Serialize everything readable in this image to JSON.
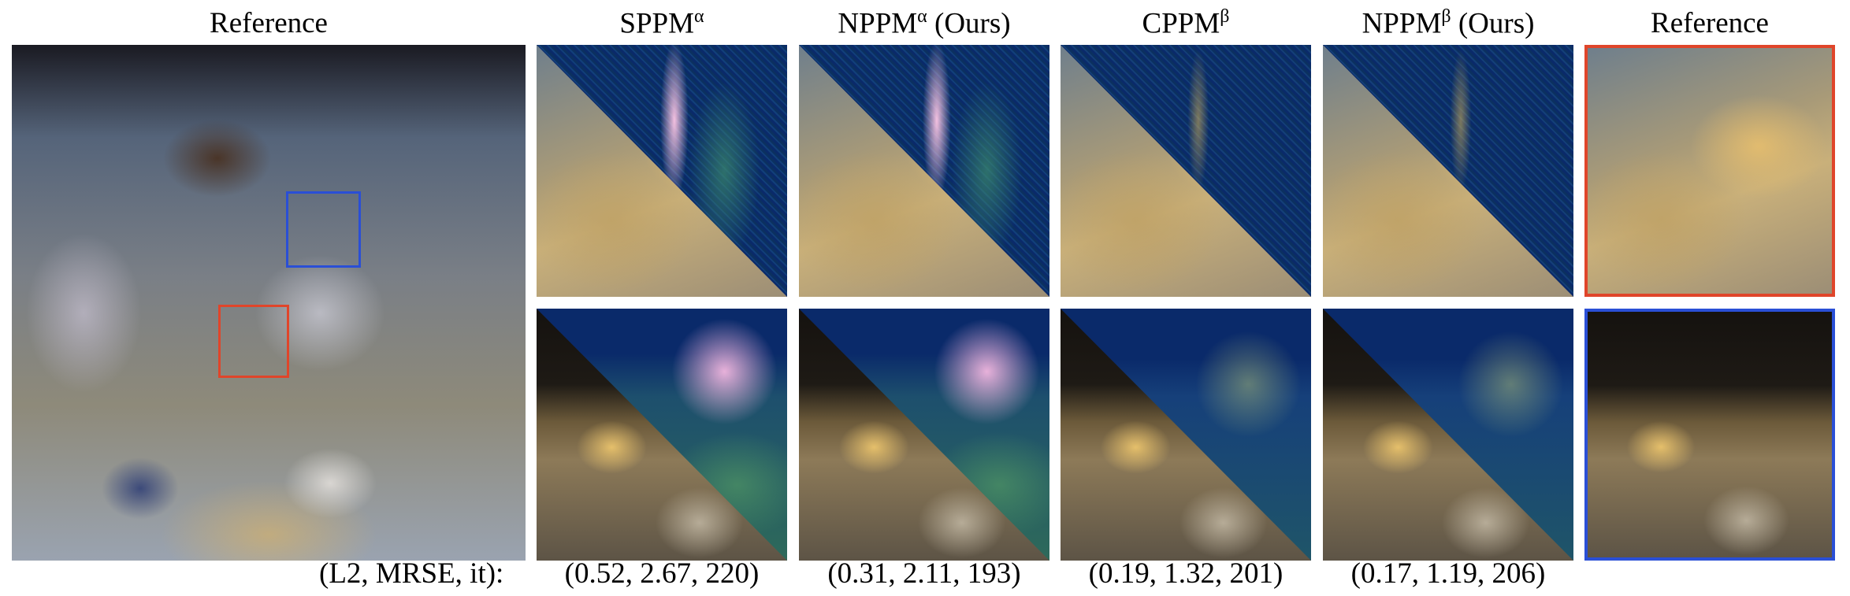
{
  "headers": {
    "reference": "Reference",
    "sppm": {
      "base": "SPPM",
      "sup": "α"
    },
    "nppm_a": {
      "base": "NPPM",
      "sup": "α",
      "suffix": " (Ours)"
    },
    "cppm": {
      "base": "CPPM",
      "sup": "β"
    },
    "nppm_b": {
      "base": "NPPM",
      "sup": "β",
      "suffix": " (Ours)"
    },
    "reference_crop": "Reference"
  },
  "inset_colors": {
    "top_crop": "#e0452a",
    "bottom_crop": "#2a4fd6"
  },
  "metrics": {
    "label": "(L2, MRSE, it):",
    "values": [
      "(0.52, 2.67, 220)",
      "(0.31, 2.11, 193)",
      "(0.19, 1.32, 201)",
      "(0.17, 1.19, 206)"
    ]
  }
}
